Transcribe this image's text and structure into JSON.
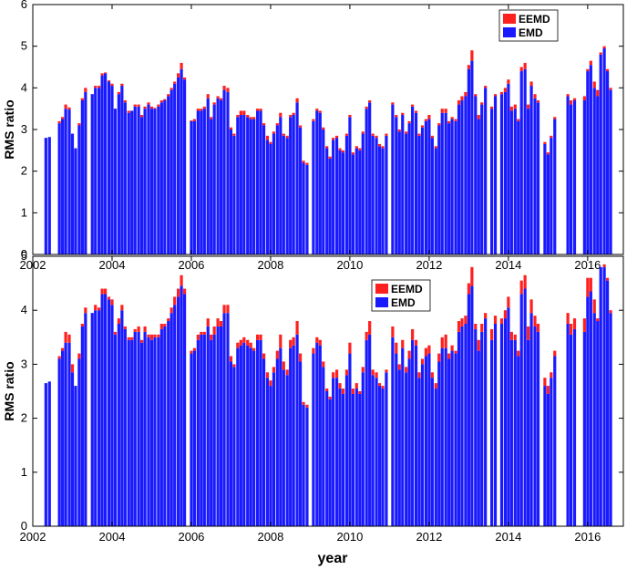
{
  "chart_data": [
    {
      "type": "bar",
      "stacked": true,
      "ylabel": "RMS ratio",
      "xlabel": "",
      "xlim": [
        2002,
        2016.9
      ],
      "ylim": [
        0,
        6
      ],
      "xticks": [
        2002,
        2004,
        2006,
        2008,
        2010,
        2012,
        2014,
        2016
      ],
      "yticks": [
        0,
        1,
        2,
        3,
        4,
        5,
        6
      ],
      "grid": false,
      "legend_position": "top-right",
      "legend": [
        {
          "name": "EEMD",
          "color": "#ff2020"
        },
        {
          "name": "EMD",
          "color": "#1a1aff"
        }
      ],
      "x": [
        2002.33,
        2002.42,
        2002.67,
        2002.75,
        2002.83,
        2002.92,
        2003.0,
        2003.08,
        2003.17,
        2003.25,
        2003.33,
        2003.5,
        2003.58,
        2003.67,
        2003.75,
        2003.83,
        2003.92,
        2004.0,
        2004.08,
        2004.17,
        2004.25,
        2004.33,
        2004.42,
        2004.5,
        2004.58,
        2004.67,
        2004.75,
        2004.83,
        2004.92,
        2005.0,
        2005.08,
        2005.17,
        2005.25,
        2005.33,
        2005.42,
        2005.5,
        2005.58,
        2005.67,
        2005.75,
        2005.83,
        2006.0,
        2006.08,
        2006.17,
        2006.25,
        2006.33,
        2006.42,
        2006.5,
        2006.58,
        2006.67,
        2006.75,
        2006.83,
        2006.92,
        2007.0,
        2007.08,
        2007.17,
        2007.25,
        2007.33,
        2007.42,
        2007.5,
        2007.58,
        2007.67,
        2007.75,
        2007.83,
        2007.92,
        2008.0,
        2008.08,
        2008.17,
        2008.25,
        2008.33,
        2008.42,
        2008.5,
        2008.58,
        2008.67,
        2008.75,
        2008.83,
        2008.92,
        2009.08,
        2009.17,
        2009.25,
        2009.33,
        2009.42,
        2009.5,
        2009.58,
        2009.67,
        2009.75,
        2009.83,
        2009.92,
        2010.0,
        2010.08,
        2010.17,
        2010.25,
        2010.33,
        2010.42,
        2010.5,
        2010.58,
        2010.67,
        2010.75,
        2010.83,
        2010.92,
        2011.08,
        2011.17,
        2011.25,
        2011.33,
        2011.42,
        2011.5,
        2011.58,
        2011.67,
        2011.75,
        2011.83,
        2011.92,
        2012.0,
        2012.08,
        2012.17,
        2012.25,
        2012.33,
        2012.42,
        2012.5,
        2012.58,
        2012.67,
        2012.75,
        2012.83,
        2012.92,
        2013.0,
        2013.08,
        2013.17,
        2013.25,
        2013.33,
        2013.42,
        2013.58,
        2013.67,
        2013.83,
        2013.92,
        2014.0,
        2014.08,
        2014.17,
        2014.25,
        2014.33,
        2014.42,
        2014.5,
        2014.58,
        2014.67,
        2014.75,
        2014.92,
        2015.0,
        2015.08,
        2015.17,
        2015.5,
        2015.58,
        2015.67,
        2015.92,
        2016.0,
        2016.08,
        2016.17,
        2016.25,
        2016.33,
        2016.42,
        2016.5,
        2016.58
      ],
      "series": [
        {
          "name": "EMD",
          "values": [
            2.8,
            2.82,
            3.15,
            3.25,
            3.5,
            3.48,
            2.9,
            2.55,
            3.1,
            3.7,
            3.9,
            3.85,
            4.0,
            4.0,
            4.3,
            4.35,
            4.15,
            4.05,
            3.5,
            3.85,
            4.05,
            3.65,
            3.4,
            3.45,
            3.55,
            3.55,
            3.3,
            3.5,
            3.6,
            3.5,
            3.5,
            3.55,
            3.65,
            3.7,
            3.8,
            3.95,
            4.1,
            4.25,
            4.45,
            4.2,
            3.2,
            3.2,
            3.45,
            3.45,
            3.5,
            3.75,
            3.25,
            3.6,
            3.75,
            3.7,
            3.95,
            3.9,
            3.0,
            2.85,
            3.3,
            3.35,
            3.35,
            3.3,
            3.25,
            3.25,
            3.45,
            3.45,
            3.1,
            2.75,
            2.65,
            2.9,
            3.1,
            3.3,
            2.85,
            2.8,
            3.3,
            3.35,
            3.65,
            3.05,
            2.2,
            2.15,
            3.2,
            3.45,
            3.4,
            3.0,
            2.55,
            2.3,
            2.75,
            2.8,
            2.5,
            2.45,
            2.85,
            3.3,
            2.4,
            2.55,
            2.5,
            2.9,
            3.5,
            3.65,
            2.85,
            2.8,
            2.6,
            2.55,
            2.85,
            3.6,
            3.3,
            2.95,
            3.35,
            2.9,
            3.15,
            3.55,
            3.4,
            2.85,
            3.05,
            3.2,
            3.25,
            2.8,
            2.55,
            3.1,
            3.4,
            3.4,
            3.15,
            3.25,
            3.2,
            3.6,
            3.7,
            3.8,
            4.45,
            4.65,
            3.8,
            3.25,
            3.6,
            4.0,
            3.5,
            3.8,
            3.85,
            3.9,
            4.1,
            3.45,
            3.5,
            3.2,
            4.4,
            4.45,
            3.5,
            4.05,
            3.75,
            3.65,
            2.65,
            2.4,
            2.8,
            3.25,
            3.8,
            3.6,
            3.7,
            3.7,
            4.4,
            4.55,
            4.0,
            3.8,
            4.8,
            4.95,
            4.4,
            3.95
          ]
        },
        {
          "name": "EEMD",
          "values": [
            0,
            0,
            0.05,
            0.05,
            0.1,
            0.05,
            0,
            0,
            0.05,
            0.05,
            0.1,
            0,
            0.05,
            0.05,
            0.05,
            0.02,
            0.03,
            0.05,
            0,
            0.05,
            0.05,
            0.05,
            0.05,
            0,
            0.05,
            0.05,
            0.05,
            0.05,
            0.05,
            0.05,
            0.02,
            0.05,
            0.05,
            0.03,
            0.05,
            0.05,
            0.05,
            0.1,
            0.15,
            0.05,
            0.02,
            0.05,
            0.05,
            0.05,
            0.05,
            0.1,
            0.05,
            0.05,
            0.05,
            0.05,
            0.1,
            0.1,
            0.05,
            0.05,
            0.05,
            0.1,
            0.1,
            0.05,
            0.05,
            0.05,
            0.05,
            0.05,
            0.05,
            0.1,
            0.05,
            0.05,
            0.05,
            0.1,
            0.05,
            0.05,
            0.05,
            0.05,
            0.1,
            0.05,
            0.05,
            0.05,
            0.05,
            0.05,
            0.05,
            0.05,
            0.05,
            0.05,
            0.05,
            0.05,
            0.05,
            0.05,
            0.05,
            0.05,
            0.05,
            0.05,
            0.05,
            0.05,
            0.05,
            0.05,
            0.05,
            0.05,
            0.05,
            0.05,
            0.05,
            0.05,
            0.05,
            0.05,
            0.05,
            0.05,
            0.05,
            0.05,
            0.05,
            0.05,
            0.05,
            0.05,
            0.1,
            0.05,
            0.05,
            0.05,
            0.1,
            0.1,
            0.05,
            0.05,
            0.05,
            0.1,
            0.1,
            0.1,
            0.1,
            0.25,
            0.05,
            0.1,
            0.05,
            0.05,
            0.05,
            0.05,
            0.05,
            0.1,
            0.1,
            0.1,
            0.1,
            0.05,
            0.1,
            0.15,
            0.1,
            0.1,
            0.1,
            0.05,
            0.05,
            0.05,
            0.05,
            0.05,
            0.05,
            0.1,
            0.05,
            0.1,
            0.05,
            0.1,
            0.15,
            0.15,
            0.05,
            0.05,
            0.05,
            0.05
          ]
        }
      ]
    },
    {
      "type": "bar",
      "stacked": true,
      "ylabel": "RMS ratio",
      "xlabel": "year",
      "xlim": [
        2002,
        2016.9
      ],
      "ylim": [
        0,
        5
      ],
      "xticks": [
        2002,
        2004,
        2006,
        2008,
        2010,
        2012,
        2014,
        2016
      ],
      "yticks": [
        0,
        1,
        2,
        3,
        4,
        5
      ],
      "grid": false,
      "legend_position": "top-right",
      "legend": [
        {
          "name": "EEMD",
          "color": "#ff2020"
        },
        {
          "name": "EMD",
          "color": "#1a1aff"
        }
      ],
      "x": [
        2002.33,
        2002.42,
        2002.67,
        2002.75,
        2002.83,
        2002.92,
        2003.0,
        2003.08,
        2003.17,
        2003.25,
        2003.33,
        2003.5,
        2003.58,
        2003.67,
        2003.75,
        2003.83,
        2003.92,
        2004.0,
        2004.08,
        2004.17,
        2004.25,
        2004.33,
        2004.42,
        2004.5,
        2004.58,
        2004.67,
        2004.75,
        2004.83,
        2004.92,
        2005.0,
        2005.08,
        2005.17,
        2005.25,
        2005.33,
        2005.42,
        2005.5,
        2005.58,
        2005.67,
        2005.75,
        2005.83,
        2006.0,
        2006.08,
        2006.17,
        2006.25,
        2006.33,
        2006.42,
        2006.5,
        2006.58,
        2006.67,
        2006.75,
        2006.83,
        2006.92,
        2007.0,
        2007.08,
        2007.17,
        2007.25,
        2007.33,
        2007.42,
        2007.5,
        2007.58,
        2007.67,
        2007.75,
        2007.83,
        2007.92,
        2008.0,
        2008.08,
        2008.17,
        2008.25,
        2008.33,
        2008.42,
        2008.5,
        2008.58,
        2008.67,
        2008.75,
        2008.83,
        2008.92,
        2009.08,
        2009.17,
        2009.25,
        2009.33,
        2009.42,
        2009.5,
        2009.58,
        2009.67,
        2009.75,
        2009.83,
        2009.92,
        2010.0,
        2010.08,
        2010.17,
        2010.25,
        2010.33,
        2010.42,
        2010.5,
        2010.58,
        2010.67,
        2010.75,
        2010.83,
        2010.92,
        2011.08,
        2011.17,
        2011.25,
        2011.33,
        2011.42,
        2011.5,
        2011.58,
        2011.67,
        2011.75,
        2011.83,
        2011.92,
        2012.0,
        2012.08,
        2012.17,
        2012.25,
        2012.33,
        2012.42,
        2012.5,
        2012.58,
        2012.67,
        2012.75,
        2012.83,
        2012.92,
        2013.0,
        2013.08,
        2013.17,
        2013.25,
        2013.33,
        2013.42,
        2013.58,
        2013.67,
        2013.83,
        2013.92,
        2014.0,
        2014.08,
        2014.17,
        2014.25,
        2014.33,
        2014.42,
        2014.5,
        2014.58,
        2014.67,
        2014.75,
        2014.92,
        2015.0,
        2015.08,
        2015.17,
        2015.5,
        2015.58,
        2015.67,
        2015.92,
        2016.0,
        2016.08,
        2016.17,
        2016.25,
        2016.33,
        2016.42,
        2016.5,
        2016.58
      ],
      "series": [
        {
          "name": "EMD",
          "values": [
            2.65,
            2.68,
            3.1,
            3.25,
            3.4,
            3.4,
            2.85,
            2.6,
            3.1,
            3.7,
            3.95,
            3.95,
            4.0,
            4.0,
            4.3,
            4.3,
            4.2,
            4.1,
            3.55,
            3.75,
            4.0,
            3.65,
            3.45,
            3.45,
            3.6,
            3.6,
            3.4,
            3.6,
            3.5,
            3.45,
            3.5,
            3.5,
            3.65,
            3.7,
            3.8,
            3.95,
            4.1,
            4.25,
            4.45,
            4.3,
            3.2,
            3.25,
            3.45,
            3.55,
            3.55,
            3.7,
            3.45,
            3.55,
            3.7,
            3.7,
            3.95,
            3.95,
            3.05,
            2.95,
            3.3,
            3.35,
            3.4,
            3.35,
            3.3,
            3.25,
            3.45,
            3.45,
            3.1,
            2.75,
            2.6,
            2.85,
            3.1,
            3.3,
            2.9,
            2.8,
            3.3,
            3.35,
            3.55,
            3.05,
            2.25,
            2.2,
            3.2,
            3.4,
            3.35,
            2.95,
            2.5,
            2.35,
            2.75,
            2.75,
            2.55,
            2.45,
            2.8,
            3.2,
            2.45,
            2.55,
            2.45,
            2.85,
            3.45,
            3.55,
            2.8,
            2.75,
            2.6,
            2.55,
            2.85,
            3.5,
            3.2,
            2.9,
            3.3,
            2.85,
            3.1,
            3.45,
            3.35,
            2.75,
            3.0,
            3.15,
            3.2,
            2.75,
            2.55,
            3.05,
            3.3,
            3.3,
            3.1,
            3.25,
            3.2,
            3.6,
            3.7,
            3.75,
            4.3,
            4.45,
            3.65,
            3.25,
            3.6,
            3.85,
            3.45,
            3.75,
            3.75,
            3.85,
            4.05,
            3.45,
            3.45,
            3.15,
            4.3,
            4.4,
            3.45,
            3.95,
            3.7,
            3.6,
            2.6,
            2.45,
            2.75,
            3.15,
            3.75,
            3.55,
            3.65,
            3.6,
            4.25,
            4.35,
            3.95,
            3.8,
            4.8,
            4.8,
            4.55,
            3.95
          ]
        },
        {
          "name": "EEMD",
          "values": [
            0,
            0,
            0.05,
            0.05,
            0.2,
            0.15,
            0.15,
            0,
            0.1,
            0.05,
            0.1,
            0,
            0.1,
            0.05,
            0.1,
            0.1,
            0.05,
            0.1,
            0.05,
            0.1,
            0.1,
            0.05,
            0.05,
            0.05,
            0.05,
            0.1,
            0.05,
            0.1,
            0.05,
            0.1,
            0.05,
            0.05,
            0.1,
            0.05,
            0.05,
            0.1,
            0.15,
            0.15,
            0.2,
            0.1,
            0.05,
            0.05,
            0.1,
            0.05,
            0.05,
            0.15,
            0.1,
            0.15,
            0.15,
            0.1,
            0.15,
            0.15,
            0.1,
            0.05,
            0.1,
            0.1,
            0.1,
            0.1,
            0.1,
            0.05,
            0.1,
            0.1,
            0.1,
            0.1,
            0.1,
            0.1,
            0.15,
            0.25,
            0.15,
            0.1,
            0.15,
            0.15,
            0.25,
            0.15,
            0.05,
            0.05,
            0.1,
            0.1,
            0.1,
            0.1,
            0.05,
            0.05,
            0.1,
            0.15,
            0.1,
            0.1,
            0.1,
            0.2,
            0.1,
            0.1,
            0.05,
            0.1,
            0.15,
            0.25,
            0.1,
            0.1,
            0.05,
            0.05,
            0.05,
            0.2,
            0.2,
            0.1,
            0.15,
            0.1,
            0.15,
            0.2,
            0.1,
            0.1,
            0.1,
            0.15,
            0.15,
            0.1,
            0.1,
            0.15,
            0.2,
            0.25,
            0.1,
            0.1,
            0.05,
            0.2,
            0.15,
            0.15,
            0.2,
            0.35,
            0.1,
            0.2,
            0.15,
            0.1,
            0.2,
            0.15,
            0.1,
            0.15,
            0.2,
            0.15,
            0.1,
            0.1,
            0.25,
            0.25,
            0.25,
            0.25,
            0.2,
            0.15,
            0.15,
            0.15,
            0.1,
            0.1,
            0.2,
            0.2,
            0.2,
            0.25,
            0.35,
            0.25,
            0.25,
            0.05,
            0.0,
            0.05,
            0.05,
            0.05
          ]
        }
      ]
    }
  ]
}
